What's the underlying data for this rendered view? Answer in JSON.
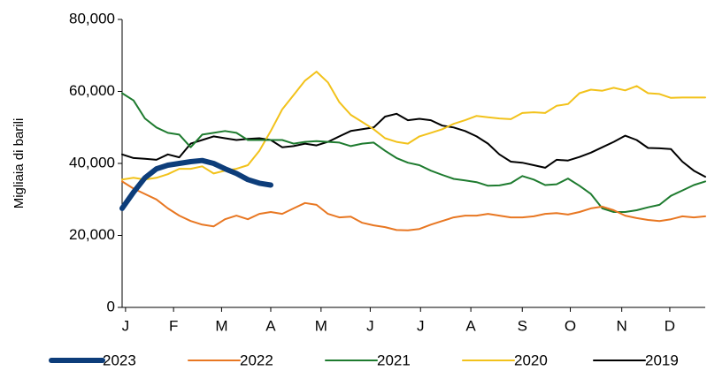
{
  "chart_data": {
    "type": "line",
    "y_label": "Migliaia di barili",
    "x": [
      1,
      2,
      3,
      4,
      5,
      6,
      7,
      8,
      9,
      10,
      11,
      12,
      13,
      14,
      15,
      16,
      17,
      18,
      19,
      20,
      21,
      22,
      23,
      24,
      25,
      26,
      27,
      28,
      29,
      30,
      31,
      32,
      33,
      34,
      35,
      36,
      37,
      38,
      39,
      40,
      41,
      42,
      43,
      44,
      45,
      46,
      47,
      48,
      49,
      50,
      51,
      52
    ],
    "xlim": [
      1,
      52
    ],
    "xticks": [
      {
        "value": 1.3,
        "label": "J"
      },
      {
        "value": 5.5,
        "label": "F"
      },
      {
        "value": 9.7,
        "label": "M"
      },
      {
        "value": 14.0,
        "label": "A"
      },
      {
        "value": 18.4,
        "label": "M"
      },
      {
        "value": 22.7,
        "label": "J"
      },
      {
        "value": 27.1,
        "label": "J"
      },
      {
        "value": 31.5,
        "label": "A"
      },
      {
        "value": 36.0,
        "label": "S"
      },
      {
        "value": 40.2,
        "label": "O"
      },
      {
        "value": 44.7,
        "label": "N"
      },
      {
        "value": 48.9,
        "label": "D"
      }
    ],
    "ylim": [
      0,
      80000
    ],
    "yticks": [
      0,
      {
        "value": 20000,
        "label": "20,000"
      },
      {
        "value": 40000,
        "label": "40,000"
      },
      {
        "value": 60000,
        "label": "60,000"
      },
      {
        "value": 80000,
        "label": "80,000"
      }
    ],
    "grid": false,
    "legend": "bottom",
    "series": [
      {
        "name": "2023",
        "color": "#0d3d7a",
        "width": 6,
        "values": [
          27500,
          32000,
          36000,
          38500,
          39500,
          40000,
          40500,
          40800,
          40000,
          38500,
          37200,
          35500,
          34500,
          34000,
          null,
          null,
          null,
          null,
          null,
          null,
          null,
          null,
          null,
          null,
          null,
          null,
          null,
          null,
          null,
          null,
          null,
          null,
          null,
          null,
          null,
          null,
          null,
          null,
          null,
          null,
          null,
          null,
          null,
          null,
          null,
          null,
          null,
          null,
          null,
          null,
          null,
          null
        ]
      },
      {
        "name": "2022",
        "color": "#e87722",
        "width": 2,
        "values": [
          35000,
          33000,
          31500,
          30000,
          27500,
          25500,
          24000,
          23000,
          22500,
          24500,
          25500,
          24500,
          26000,
          26500,
          26000,
          27500,
          29000,
          28500,
          26000,
          25000,
          25200,
          23500,
          22800,
          22300,
          21500,
          21400,
          21800,
          23000,
          24000,
          25000,
          25500,
          25500,
          26000,
          25500,
          25000,
          25000,
          25300,
          26000,
          26200,
          25800,
          26500,
          27500,
          28000,
          27000,
          25500,
          24800,
          24300,
          24000,
          24500,
          25300,
          25000,
          25300
        ]
      },
      {
        "name": "2021",
        "color": "#1e7b2f",
        "width": 2,
        "values": [
          59500,
          57500,
          52500,
          50000,
          48500,
          48000,
          44500,
          48000,
          48500,
          49000,
          48500,
          46500,
          46500,
          46500,
          46500,
          45500,
          46000,
          46200,
          46000,
          45800,
          44800,
          45500,
          45800,
          43500,
          41500,
          40200,
          39500,
          38000,
          36800,
          35700,
          35300,
          34800,
          33800,
          33900,
          34500,
          36500,
          35500,
          34000,
          34200,
          35800,
          33800,
          31500,
          27500,
          26500,
          26500,
          27000,
          27800,
          28500,
          31000,
          32500,
          34000,
          35000
        ]
      },
      {
        "name": "2020",
        "color": "#f2c21b",
        "width": 2,
        "values": [
          35500,
          36000,
          35500,
          36000,
          37000,
          38500,
          38500,
          39200,
          37200,
          38000,
          38500,
          39500,
          43500,
          49000,
          55000,
          59000,
          63000,
          65500,
          62500,
          57000,
          53500,
          51500,
          49500,
          47000,
          46000,
          45500,
          47500,
          48500,
          49500,
          51000,
          52000,
          53200,
          52800,
          52500,
          52300,
          54000,
          54200,
          54000,
          56000,
          56500,
          59500,
          60500,
          60200,
          61000,
          60300,
          61500,
          59500,
          59300,
          58200,
          58300,
          58300,
          58300
        ]
      },
      {
        "name": "2019",
        "color": "#000000",
        "width": 2,
        "values": [
          42500,
          41500,
          41300,
          41000,
          42500,
          41700,
          45500,
          46500,
          47500,
          47000,
          46500,
          46800,
          47000,
          46500,
          44500,
          44800,
          45500,
          45000,
          46000,
          47500,
          49000,
          49500,
          50000,
          53000,
          53800,
          52000,
          52400,
          52000,
          50500,
          50000,
          49000,
          47500,
          45500,
          42500,
          40500,
          40200,
          39500,
          38800,
          41000,
          40800,
          41800,
          43000,
          44500,
          46000,
          47700,
          46500,
          44300,
          44200,
          44000,
          40500,
          38000,
          36300
        ]
      }
    ]
  }
}
